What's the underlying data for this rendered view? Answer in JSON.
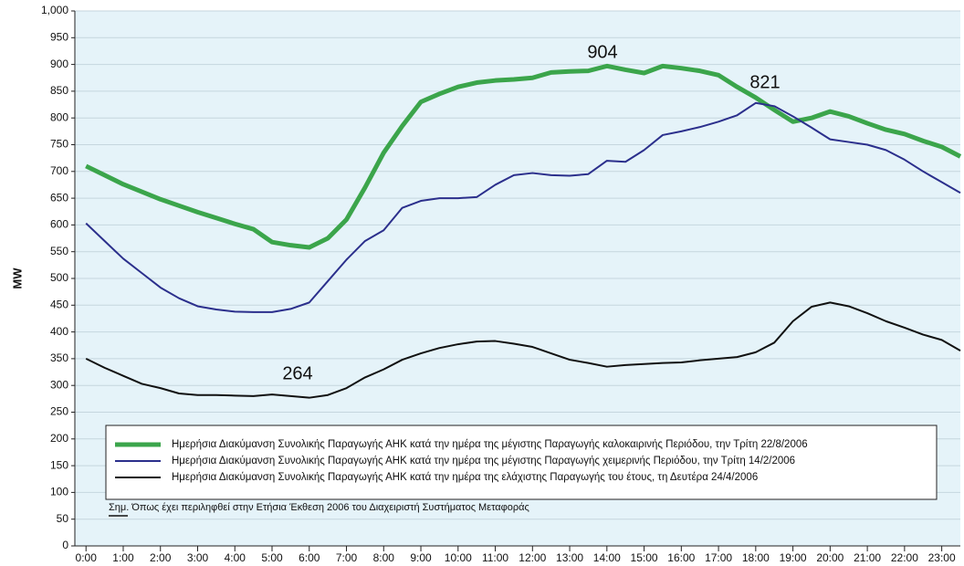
{
  "chart_data": {
    "type": "line",
    "y_label": "MW",
    "x": [
      0,
      0.5,
      1,
      1.5,
      2,
      2.5,
      3,
      3.5,
      4,
      4.5,
      5,
      5.5,
      6,
      6.5,
      7,
      7.5,
      8,
      8.5,
      9,
      9.5,
      10,
      10.5,
      11,
      11.5,
      12,
      12.5,
      13,
      13.5,
      14,
      14.5,
      15,
      15.5,
      16,
      16.5,
      17,
      17.5,
      18,
      18.5,
      19,
      19.5,
      20,
      20.5,
      21,
      21.5,
      22,
      22.5,
      23,
      23.5
    ],
    "series": [
      {
        "name": "Ημερήσια Διακύμανση Συνολικής Παραγωγής ΑΗΚ κατά την ημέρα της μέγιστης Παραγωγής καλοκαιρινής Περιόδου, την Τρίτη 22/8/2006",
        "color": "#3ba54b",
        "width": 5,
        "values": [
          710,
          693,
          676,
          662,
          648,
          636,
          624,
          613,
          602,
          592,
          568,
          562,
          558,
          575,
          610,
          670,
          735,
          785,
          830,
          845,
          858,
          866,
          870,
          872,
          875,
          885,
          887,
          888,
          897,
          890,
          884,
          897,
          893,
          888,
          880,
          858,
          838,
          815,
          793,
          800,
          812,
          803,
          790,
          778,
          770,
          757,
          746,
          728
        ]
      },
      {
        "name": "Ημερήσια Διακύμανση Συνολικής Παραγωγής ΑΗΚ κατά την ημέρα της μέγιστης Παραγωγής χειμερινής Περιόδου, την Τρίτη 14/2/2006",
        "color": "#2b2f8c",
        "width": 2,
        "values": [
          603,
          570,
          537,
          510,
          483,
          463,
          448,
          442,
          438,
          437,
          437,
          443,
          455,
          495,
          535,
          570,
          590,
          632,
          645,
          650,
          650,
          652,
          675,
          693,
          697,
          693,
          692,
          695,
          720,
          718,
          740,
          768,
          775,
          783,
          793,
          805,
          828,
          822,
          803,
          782,
          760,
          755,
          750,
          740,
          722,
          700,
          680,
          660
        ]
      },
      {
        "name": "Ημερήσια Διακύμανση Συνολικής Παραγωγής ΑΗΚ κατά την ημέρα της ελάχιστης Παραγωγής του έτους, τη Δευτέρα 24/4/2006",
        "color": "#111111",
        "width": 2,
        "values": [
          350,
          333,
          318,
          303,
          295,
          285,
          282,
          282,
          281,
          280,
          283,
          280,
          277,
          282,
          295,
          315,
          330,
          348,
          360,
          370,
          377,
          382,
          383,
          378,
          372,
          360,
          348,
          342,
          335,
          338,
          340,
          342,
          343,
          347,
          350,
          353,
          362,
          380,
          420,
          447,
          455,
          448,
          435,
          420,
          408,
          395,
          385,
          365
        ]
      }
    ],
    "annotations": [
      "904",
      "821",
      "264"
    ],
    "note": "Σημ. Όπως έχει περιληφθεί στην Ετήσια Έκθεση 2006 του Διαχειριστή Συστήματος Μεταφοράς",
    "xlim": [
      -0.3,
      23.5
    ],
    "xticks": [
      {
        "value": 0,
        "label": "0:00"
      },
      {
        "value": 1,
        "label": "1:00"
      },
      {
        "value": 2,
        "label": "2:00"
      },
      {
        "value": 3,
        "label": "3:00"
      },
      {
        "value": 4,
        "label": "4:00"
      },
      {
        "value": 5,
        "label": "5:00"
      },
      {
        "value": 6,
        "label": "6:00"
      },
      {
        "value": 7,
        "label": "7:00"
      },
      {
        "value": 8,
        "label": "8:00"
      },
      {
        "value": 9,
        "label": "9:00"
      },
      {
        "value": 10,
        "label": "10:00"
      },
      {
        "value": 11,
        "label": "11:00"
      },
      {
        "value": 12,
        "label": "12:00"
      },
      {
        "value": 13,
        "label": "13:00"
      },
      {
        "value": 14,
        "label": "14:00"
      },
      {
        "value": 15,
        "label": "15:00"
      },
      {
        "value": 16,
        "label": "16:00"
      },
      {
        "value": 17,
        "label": "17:00"
      },
      {
        "value": 18,
        "label": "18:00"
      },
      {
        "value": 19,
        "label": "19:00"
      },
      {
        "value": 20,
        "label": "20:00"
      },
      {
        "value": 21,
        "label": "21:00"
      },
      {
        "value": 22,
        "label": "22:00"
      },
      {
        "value": 23,
        "label": "23:00"
      }
    ],
    "ylim": [
      0,
      1000
    ],
    "yticks": [
      0,
      50,
      100,
      150,
      200,
      250,
      300,
      350,
      400,
      450,
      500,
      550,
      600,
      650,
      700,
      750,
      800,
      850,
      900,
      950,
      {
        "value": 1000,
        "label": "1,000"
      }
    ],
    "grid": true,
    "legend": "bottom"
  }
}
